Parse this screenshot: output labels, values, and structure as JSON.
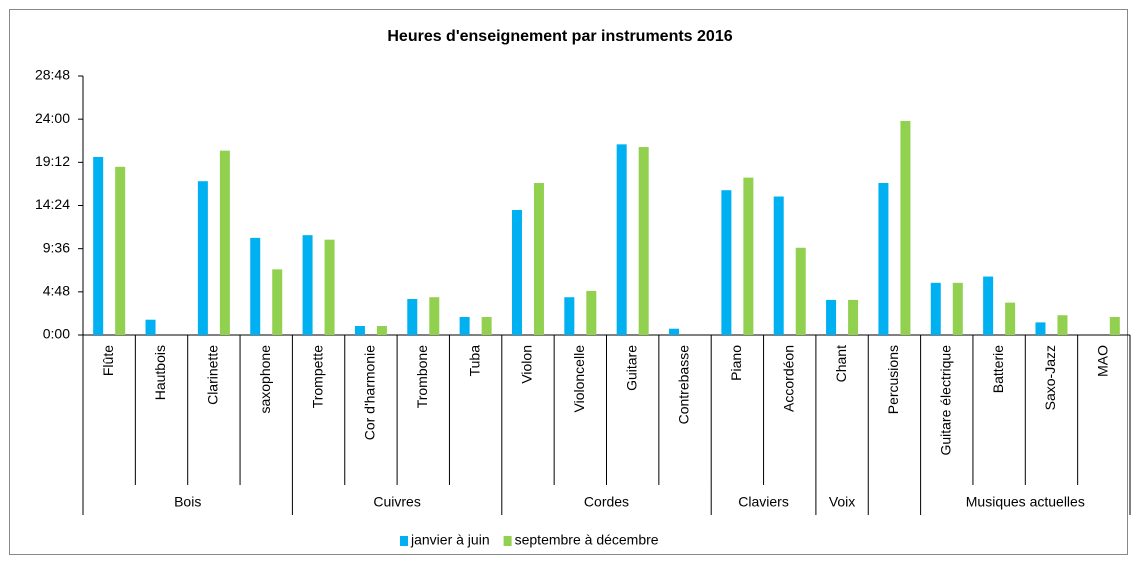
{
  "chart_data": {
    "type": "bar",
    "title": "Heures d'enseignement par instruments 2016",
    "categories": [
      "Flûte",
      "Hautbois",
      "Clarinette",
      "saxophone",
      "Trompette",
      "Cor d'harmonie",
      "Trombone",
      "Tuba",
      "Violon",
      "Violoncelle",
      "Guitare",
      "Contrebasse",
      "Piano",
      "Accordéon",
      "Chant",
      "Percusions",
      "Guitare électrique",
      "Batterie",
      "Saxo-Jazz",
      "MAO"
    ],
    "groups": [
      {
        "name": "Bois",
        "span": 4
      },
      {
        "name": "Cuivres",
        "span": 4
      },
      {
        "name": "Cordes",
        "span": 4
      },
      {
        "name": "Claviers",
        "span": 2
      },
      {
        "name": "Voix",
        "span": 1
      },
      {
        "name": null,
        "span": 1
      },
      {
        "name": "Musiques actuelles",
        "span": 4
      }
    ],
    "series": [
      {
        "name": "janvier à juin",
        "color": "#00b0f0",
        "values": [
          19.8,
          1.7,
          17.1,
          10.8,
          11.1,
          1.0,
          4.0,
          2.0,
          13.9,
          4.2,
          21.2,
          0.7,
          16.1,
          15.4,
          3.9,
          16.9,
          5.8,
          6.5,
          1.4,
          0
        ]
      },
      {
        "name": "septembre à décembre",
        "color": "#92d050",
        "values": [
          18.7,
          0,
          20.5,
          7.3,
          10.6,
          1.0,
          4.2,
          2.0,
          16.9,
          4.9,
          20.9,
          0,
          17.5,
          9.7,
          3.9,
          23.8,
          5.8,
          3.6,
          2.2,
          2.0
        ]
      }
    ],
    "ylim": [
      0,
      28.8
    ],
    "yticks": [
      {
        "value": 0,
        "label": "0:00"
      },
      {
        "value": 4.8,
        "label": "4:48"
      },
      {
        "value": 9.6,
        "label": "9:36"
      },
      {
        "value": 14.4,
        "label": "14:24"
      },
      {
        "value": 19.2,
        "label": "19:12"
      },
      {
        "value": 24,
        "label": "24:00"
      },
      {
        "value": 28.8,
        "label": "28:48"
      }
    ],
    "grid": false,
    "legend": "bottom"
  }
}
